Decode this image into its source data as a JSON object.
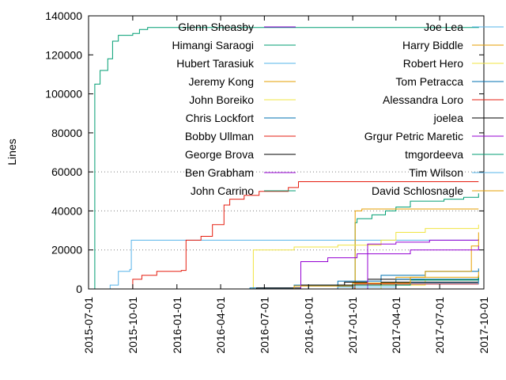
{
  "chart_data": {
    "type": "line",
    "title": "",
    "xlabel": "",
    "ylabel": "Lines",
    "ylim": [
      0,
      140000
    ],
    "yticks": [
      0,
      20000,
      40000,
      60000,
      80000,
      100000,
      120000,
      140000
    ],
    "ytick_labels": [
      "0",
      "20000",
      "40000",
      "60000",
      "80000",
      "100000",
      "120000",
      "140000"
    ],
    "xlim": [
      "2015-07-01",
      "2017-10-01"
    ],
    "xticks": [
      "2015-07-01",
      "2015-10-01",
      "2016-01-01",
      "2016-04-01",
      "2016-07-01",
      "2016-10-01",
      "2017-01-01",
      "2017-04-01",
      "2017-07-01",
      "2017-10-01"
    ],
    "grid": "horizontal dotted at 20000, 40000, 60000",
    "legend_position": "inside top, two columns",
    "series": [
      {
        "name": "Glenn Sheasby",
        "color": "#9400d3",
        "points": [
          [
            "2015-07-01",
            0
          ],
          [
            "2017-09-20",
            0
          ]
        ]
      },
      {
        "name": "Himangi Saraogi",
        "color": "#009e73",
        "points": [
          [
            "2015-07-01",
            0
          ],
          [
            "2016-12-30",
            0
          ],
          [
            "2017-01-06",
            34000
          ],
          [
            "2017-01-10",
            36000
          ],
          [
            "2017-02-10",
            38000
          ],
          [
            "2017-03-10",
            40000
          ],
          [
            "2017-04-01",
            42000
          ],
          [
            "2017-05-01",
            45000
          ],
          [
            "2017-07-10",
            46000
          ],
          [
            "2017-08-20",
            47000
          ],
          [
            "2017-09-20",
            49000
          ]
        ]
      },
      {
        "name": "Hubert Tarasiuk",
        "color": "#56b4e9",
        "points": [
          [
            "2015-07-01",
            0
          ],
          [
            "2015-08-15",
            2000
          ],
          [
            "2015-09-01",
            9000
          ],
          [
            "2015-09-25",
            10000
          ],
          [
            "2015-09-28",
            25000
          ],
          [
            "2017-01-05",
            25000
          ],
          [
            "2017-09-20",
            25500
          ]
        ]
      },
      {
        "name": "Jeremy Kong",
        "color": "#e69f00",
        "points": [
          [
            "2015-07-01",
            0
          ],
          [
            "2016-09-01",
            0
          ],
          [
            "2017-01-06",
            40000
          ],
          [
            "2017-01-20",
            41000
          ],
          [
            "2017-09-20",
            41000
          ]
        ]
      },
      {
        "name": "John Boreiko",
        "color": "#f0e442",
        "points": [
          [
            "2015-07-01",
            0
          ],
          [
            "2016-06-01",
            0
          ],
          [
            "2016-06-08",
            20000
          ],
          [
            "2016-09-01",
            21500
          ],
          [
            "2016-12-01",
            22500
          ],
          [
            "2017-03-01",
            25000
          ],
          [
            "2017-04-01",
            29000
          ],
          [
            "2017-06-01",
            31000
          ],
          [
            "2017-09-20",
            33000
          ]
        ]
      },
      {
        "name": "Chris Lockfort",
        "color": "#0072b2",
        "points": [
          [
            "2015-07-01",
            0
          ],
          [
            "2016-06-01",
            500
          ],
          [
            "2016-09-01",
            2000
          ],
          [
            "2016-12-01",
            4000
          ],
          [
            "2017-03-01",
            7000
          ],
          [
            "2017-06-01",
            9000
          ],
          [
            "2017-09-20",
            10500
          ]
        ]
      },
      {
        "name": "Bobby Ullman",
        "color": "#e51e10",
        "points": [
          [
            "2015-07-01",
            0
          ],
          [
            "2015-09-20",
            0
          ],
          [
            "2015-10-01",
            5000
          ],
          [
            "2015-10-20",
            7000
          ],
          [
            "2015-11-20",
            9000
          ],
          [
            "2016-01-10",
            9500
          ],
          [
            "2016-01-20",
            25000
          ],
          [
            "2016-02-20",
            27000
          ],
          [
            "2016-03-15",
            33000
          ],
          [
            "2016-04-08",
            43000
          ],
          [
            "2016-04-20",
            46000
          ],
          [
            "2016-05-20",
            48000
          ],
          [
            "2016-06-20",
            50000
          ],
          [
            "2016-08-20",
            52000
          ],
          [
            "2016-09-10",
            55000
          ],
          [
            "2017-09-20",
            55000
          ]
        ]
      },
      {
        "name": "George Brova",
        "color": "#000000",
        "points": [
          [
            "2015-07-01",
            0
          ],
          [
            "2016-06-15",
            500
          ],
          [
            "2016-09-15",
            2000
          ],
          [
            "2016-12-15",
            3500
          ],
          [
            "2017-02-01",
            5000
          ],
          [
            "2017-09-20",
            7000
          ]
        ]
      },
      {
        "name": "Ben Grabham",
        "color": "#9400d3",
        "points": [
          [
            "2015-07-01",
            0
          ],
          [
            "2016-08-01",
            0
          ],
          [
            "2016-09-15",
            14000
          ],
          [
            "2016-11-10",
            16000
          ],
          [
            "2017-01-10",
            18000
          ],
          [
            "2017-02-01",
            23000
          ],
          [
            "2017-04-01",
            24000
          ],
          [
            "2017-06-10",
            25000
          ],
          [
            "2017-09-20",
            25500
          ]
        ]
      },
      {
        "name": "John Carrino",
        "color": "#009e73",
        "points": [
          [
            "2015-07-01",
            0
          ],
          [
            "2015-07-12",
            0
          ],
          [
            "2015-07-14",
            105000
          ],
          [
            "2015-07-25",
            112000
          ],
          [
            "2015-08-10",
            118000
          ],
          [
            "2015-08-20",
            127000
          ],
          [
            "2015-09-01",
            130000
          ],
          [
            "2015-10-01",
            131000
          ],
          [
            "2015-10-15",
            133000
          ],
          [
            "2015-11-01",
            134000
          ],
          [
            "2017-09-20",
            134500
          ]
        ]
      },
      {
        "name": "Joe Lea",
        "color": "#56b4e9",
        "points": [
          [
            "2015-07-01",
            0
          ],
          [
            "2016-10-01",
            0
          ],
          [
            "2017-01-01",
            1000
          ],
          [
            "2017-04-01",
            2500
          ],
          [
            "2017-09-20",
            4000
          ]
        ]
      },
      {
        "name": "Harry Biddle",
        "color": "#e69f00",
        "points": [
          [
            "2015-07-01",
            0
          ],
          [
            "2016-09-01",
            0
          ],
          [
            "2017-01-01",
            3000
          ],
          [
            "2017-04-01",
            6000
          ],
          [
            "2017-06-01",
            9000
          ],
          [
            "2017-09-05",
            22000
          ],
          [
            "2017-09-20",
            29000
          ]
        ]
      },
      {
        "name": "Robert Hero",
        "color": "#f0e442",
        "points": [
          [
            "2015-07-01",
            0
          ],
          [
            "2016-12-01",
            0
          ],
          [
            "2017-03-01",
            2000
          ],
          [
            "2017-06-01",
            5000
          ],
          [
            "2017-09-20",
            7000
          ]
        ]
      },
      {
        "name": "Tom Petracca",
        "color": "#0072b2",
        "points": [
          [
            "2015-07-01",
            0
          ],
          [
            "2016-07-01",
            0
          ],
          [
            "2016-10-01",
            1500
          ],
          [
            "2017-01-01",
            3000
          ],
          [
            "2017-04-01",
            5000
          ],
          [
            "2017-09-20",
            6500
          ]
        ]
      },
      {
        "name": "Alessandra Loro",
        "color": "#e51e10",
        "points": [
          [
            "2015-07-01",
            0
          ],
          [
            "2016-10-01",
            0
          ],
          [
            "2017-01-05",
            2500
          ],
          [
            "2017-09-20",
            2500
          ]
        ]
      },
      {
        "name": "joelea",
        "color": "#000000",
        "points": [
          [
            "2015-07-01",
            0
          ],
          [
            "2016-08-01",
            0
          ],
          [
            "2016-12-01",
            2000
          ],
          [
            "2017-03-01",
            3500
          ],
          [
            "2017-09-20",
            5000
          ]
        ]
      },
      {
        "name": "Grgur Petric Maretic",
        "color": "#9400d3",
        "points": [
          [
            "2015-07-01",
            0
          ],
          [
            "2016-12-01",
            0
          ],
          [
            "2017-02-01",
            18000
          ],
          [
            "2017-05-01",
            20000
          ],
          [
            "2017-09-20",
            22000
          ]
        ]
      },
      {
        "name": "tmgordeeva",
        "color": "#009e73",
        "points": [
          [
            "2015-07-01",
            0
          ],
          [
            "2016-10-01",
            0
          ],
          [
            "2017-01-01",
            2000
          ],
          [
            "2017-05-01",
            4500
          ],
          [
            "2017-09-20",
            6000
          ]
        ]
      },
      {
        "name": "Tim Wilson",
        "color": "#56b4e9",
        "points": [
          [
            "2015-07-01",
            0
          ],
          [
            "2016-09-01",
            0
          ],
          [
            "2016-12-01",
            1000
          ],
          [
            "2017-04-01",
            3000
          ],
          [
            "2017-09-20",
            4500
          ]
        ]
      },
      {
        "name": "David Schlosnagle",
        "color": "#e69f00",
        "points": [
          [
            "2015-07-01",
            0
          ],
          [
            "2016-06-01",
            0
          ],
          [
            "2016-09-01",
            1500
          ],
          [
            "2017-01-01",
            3000
          ],
          [
            "2017-05-01",
            6000
          ],
          [
            "2017-09-20",
            9000
          ]
        ]
      }
    ]
  }
}
